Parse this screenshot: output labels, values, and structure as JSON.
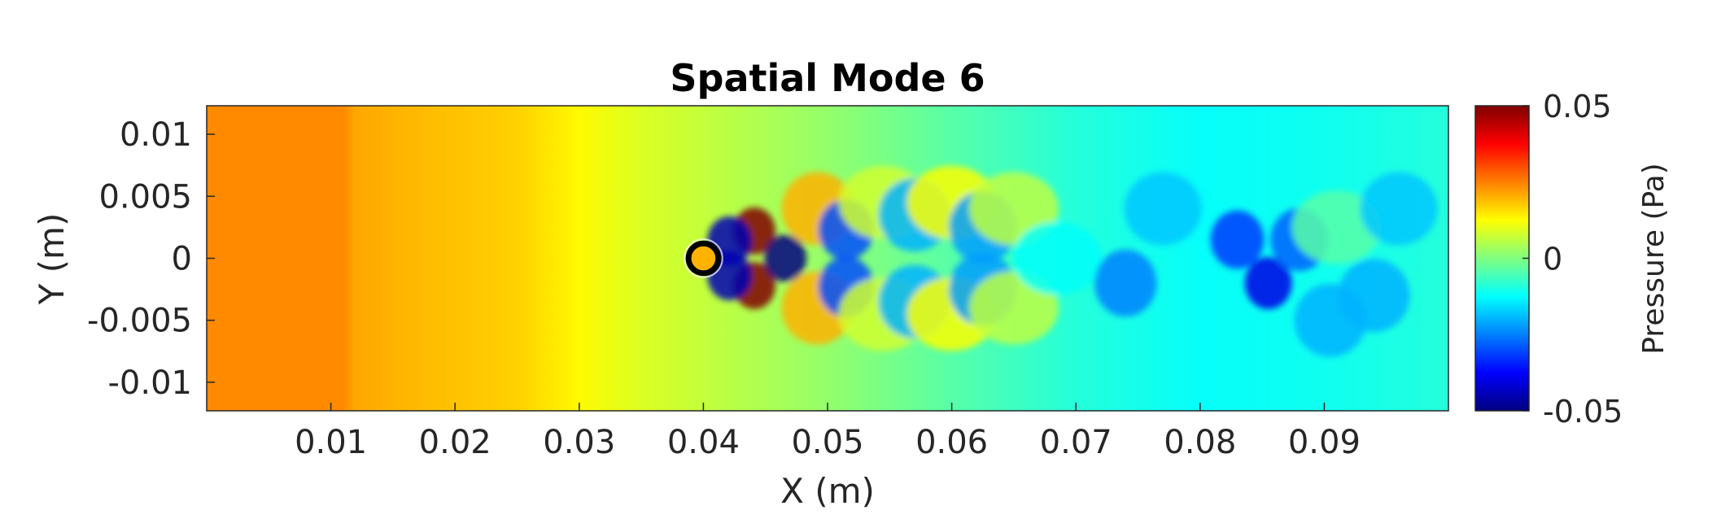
{
  "chart_data": {
    "type": "heatmap",
    "title": "Spatial Mode 6",
    "xlabel": "X (m)",
    "ylabel": "Y (m)",
    "xlim": [
      0,
      0.1
    ],
    "ylim": [
      -0.0123,
      0.0123
    ],
    "x_ticks": [
      0.01,
      0.02,
      0.03,
      0.04,
      0.05,
      0.06,
      0.07,
      0.08,
      0.09
    ],
    "x_tick_labels": [
      "0.01",
      "0.02",
      "0.03",
      "0.04",
      "0.05",
      "0.06",
      "0.07",
      "0.08",
      "0.09"
    ],
    "y_ticks": [
      0.01,
      0.005,
      0,
      -0.005,
      -0.01
    ],
    "y_tick_labels": [
      "0.01",
      "0.005",
      "0",
      "-0.005",
      "-0.01"
    ],
    "colormap": "jet",
    "colorbar": {
      "label": "Pressure (Pa)",
      "range": [
        -0.05,
        0.05
      ],
      "ticks": [
        0.05,
        0,
        -0.05
      ],
      "tick_labels": [
        "0.05",
        "0",
        "-0.05"
      ]
    },
    "cylinder": {
      "x": 0.04,
      "y": 0,
      "radius": 0.0012
    },
    "background_field": [
      {
        "x": 0.0,
        "value": 0.024
      },
      {
        "x": 0.011,
        "value": 0.024
      },
      {
        "x": 0.012,
        "value": 0.021
      },
      {
        "x": 0.018,
        "value": 0.019
      },
      {
        "x": 0.025,
        "value": 0.017
      },
      {
        "x": 0.03,
        "value": 0.013
      },
      {
        "x": 0.035,
        "value": 0.009
      },
      {
        "x": 0.05,
        "value": 0.002
      },
      {
        "x": 0.06,
        "value": -0.004
      },
      {
        "x": 0.07,
        "value": -0.009
      },
      {
        "x": 0.08,
        "value": -0.012
      },
      {
        "x": 0.09,
        "value": -0.011
      },
      {
        "x": 0.1,
        "value": -0.009
      }
    ],
    "structures": [
      {
        "x": 0.0441,
        "y": 0.0022,
        "value": 0.05
      },
      {
        "x": 0.0441,
        "y": -0.0022,
        "value": 0.05
      },
      {
        "x": 0.0466,
        "y": 0.0,
        "value": -0.05
      },
      {
        "x": 0.0421,
        "y": 0.0014,
        "value": -0.045
      },
      {
        "x": 0.0421,
        "y": -0.0014,
        "value": -0.045
      },
      {
        "x": 0.0492,
        "y": 0.004,
        "value": 0.02
      },
      {
        "x": 0.0492,
        "y": -0.004,
        "value": 0.02
      },
      {
        "x": 0.0515,
        "y": 0.0023,
        "value": -0.03
      },
      {
        "x": 0.0515,
        "y": -0.0023,
        "value": -0.03
      },
      {
        "x": 0.0545,
        "y": 0.0045,
        "value": 0.008
      },
      {
        "x": 0.0545,
        "y": -0.0045,
        "value": 0.008
      },
      {
        "x": 0.057,
        "y": 0.0035,
        "value": -0.02
      },
      {
        "x": 0.057,
        "y": -0.0035,
        "value": -0.02
      },
      {
        "x": 0.06,
        "y": 0.0045,
        "value": 0.012
      },
      {
        "x": 0.06,
        "y": -0.0045,
        "value": 0.012
      },
      {
        "x": 0.0625,
        "y": 0.0025,
        "value": -0.022
      },
      {
        "x": 0.0625,
        "y": -0.0025,
        "value": -0.022
      },
      {
        "x": 0.065,
        "y": 0.004,
        "value": 0.006
      },
      {
        "x": 0.065,
        "y": -0.004,
        "value": 0.006
      },
      {
        "x": 0.0685,
        "y": 0.0,
        "value": -0.012
      },
      {
        "x": 0.074,
        "y": -0.002,
        "value": -0.025
      },
      {
        "x": 0.077,
        "y": 0.004,
        "value": -0.018
      },
      {
        "x": 0.0855,
        "y": -0.002,
        "value": -0.04
      },
      {
        "x": 0.083,
        "y": 0.0015,
        "value": -0.032
      },
      {
        "x": 0.088,
        "y": 0.0015,
        "value": -0.028
      },
      {
        "x": 0.0905,
        "y": -0.005,
        "value": -0.02
      },
      {
        "x": 0.094,
        "y": -0.003,
        "value": -0.02
      },
      {
        "x": 0.091,
        "y": 0.0025,
        "value": -0.004
      },
      {
        "x": 0.096,
        "y": 0.004,
        "value": -0.018
      }
    ]
  }
}
